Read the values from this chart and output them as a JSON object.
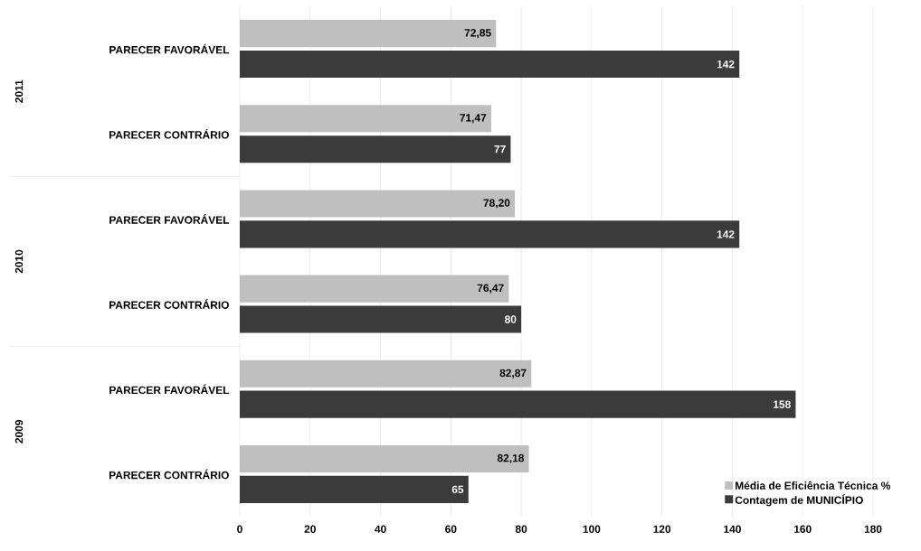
{
  "chart_data": {
    "type": "bar",
    "orientation": "horizontal",
    "categories": [
      "PARECER FAVORÁVEL",
      "PARECER CONTRÁRIO",
      "PARECER FAVORÁVEL",
      "PARECER CONTRÁRIO",
      "PARECER FAVORÁVEL",
      "PARECER CONTRÁRIO"
    ],
    "series": [
      {
        "name": "Média de Eficiência Técnica %",
        "color": "#bfbfbf",
        "values": [
          72.85,
          71.47,
          78.2,
          76.47,
          82.87,
          82.18
        ],
        "value_labels": [
          "72,85",
          "71,47",
          "78,20",
          "76,47",
          "82,87",
          "82,18"
        ]
      },
      {
        "name": "Contagem de MUNICÍPIO",
        "color": "#3b3b3b",
        "values": [
          142,
          77,
          142,
          80,
          158,
          65
        ],
        "value_labels": [
          "142",
          "77",
          "142",
          "80",
          "158",
          "65"
        ]
      }
    ],
    "annotations": [
      "2011",
      "2010",
      "2009"
    ],
    "xlim": [
      0,
      180
    ],
    "xticks": [
      0,
      20,
      40,
      60,
      80,
      100,
      120,
      140,
      160,
      180
    ],
    "grid": "x",
    "legend": "bottom right"
  }
}
